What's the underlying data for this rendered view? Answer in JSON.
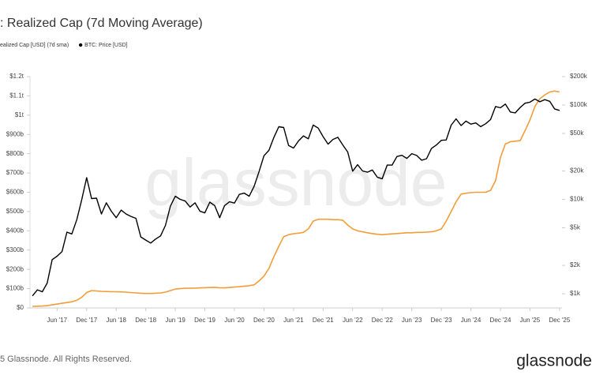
{
  "chart_data": {
    "type": "line",
    "title": ": Realized Cap (7d Moving Average)",
    "x": [
      "2017-01",
      "2017-02",
      "2017-03",
      "2017-04",
      "2017-05",
      "2017-06",
      "2017-07",
      "2017-08",
      "2017-09",
      "2017-10",
      "2017-11",
      "2017-12",
      "2018-01",
      "2018-02",
      "2018-03",
      "2018-04",
      "2018-05",
      "2018-06",
      "2018-07",
      "2018-08",
      "2018-09",
      "2018-10",
      "2018-11",
      "2018-12",
      "2019-01",
      "2019-02",
      "2019-03",
      "2019-04",
      "2019-05",
      "2019-06",
      "2019-07",
      "2019-08",
      "2019-09",
      "2019-10",
      "2019-11",
      "2019-12",
      "2020-01",
      "2020-02",
      "2020-03",
      "2020-04",
      "2020-05",
      "2020-06",
      "2020-07",
      "2020-08",
      "2020-09",
      "2020-10",
      "2020-11",
      "2020-12",
      "2021-01",
      "2021-02",
      "2021-03",
      "2021-04",
      "2021-05",
      "2021-06",
      "2021-07",
      "2021-08",
      "2021-09",
      "2021-10",
      "2021-11",
      "2021-12",
      "2022-01",
      "2022-02",
      "2022-03",
      "2022-04",
      "2022-05",
      "2022-06",
      "2022-07",
      "2022-08",
      "2022-09",
      "2022-10",
      "2022-11",
      "2022-12",
      "2023-01",
      "2023-02",
      "2023-03",
      "2023-04",
      "2023-05",
      "2023-06",
      "2023-07",
      "2023-08",
      "2023-09",
      "2023-10",
      "2023-11",
      "2023-12",
      "2024-01",
      "2024-02",
      "2024-03",
      "2024-04",
      "2024-05",
      "2024-06",
      "2024-07",
      "2024-08",
      "2024-09",
      "2024-10",
      "2024-11",
      "2024-12",
      "2025-01",
      "2025-02",
      "2025-03",
      "2025-04",
      "2025-05",
      "2025-06",
      "2025-07",
      "2025-08",
      "2025-09",
      "2025-10",
      "2025-11",
      "2025-12"
    ],
    "series": [
      {
        "name": "ealized Cap [USD] (7d sma)",
        "color": "#f29d38",
        "axis": "y",
        "values": [
          8,
          9,
          10,
          12,
          16,
          20,
          24,
          28,
          32,
          40,
          55,
          80,
          90,
          88,
          86,
          85,
          84,
          84,
          83,
          82,
          80,
          78,
          76,
          75,
          75,
          76,
          78,
          82,
          90,
          98,
          100,
          102,
          102,
          103,
          104,
          105,
          106,
          107,
          105,
          104,
          106,
          108,
          110,
          113,
          115,
          120,
          140,
          165,
          205,
          265,
          320,
          370,
          380,
          385,
          388,
          392,
          410,
          450,
          460,
          460,
          460,
          458,
          458,
          455,
          430,
          410,
          400,
          395,
          390,
          386,
          382,
          380,
          382,
          384,
          386,
          388,
          390,
          390,
          392,
          392,
          393,
          395,
          400,
          410,
          450,
          500,
          550,
          590,
          595,
          598,
          600,
          600,
          600,
          610,
          660,
          780,
          850,
          862,
          865,
          868,
          920,
          975,
          1045,
          1085,
          1105,
          1120,
          1125,
          1120
        ]
      },
      {
        "name": "BTC: Price [USD]",
        "color": "#000000",
        "axis": "y2",
        "values": [
          950,
          1100,
          1050,
          1300,
          2300,
          2500,
          2800,
          4500,
          4300,
          6100,
          9900,
          17000,
          10200,
          10300,
          7000,
          9200,
          7500,
          6400,
          7700,
          7000,
          6600,
          6300,
          4000,
          3700,
          3450,
          3800,
          4100,
          5300,
          8500,
          10800,
          10000,
          9600,
          8300,
          9200,
          7500,
          7200,
          9350,
          8600,
          6400,
          8600,
          9450,
          9140,
          11300,
          11650,
          10800,
          13800,
          19700,
          29000,
          33100,
          45200,
          58900,
          57700,
          37300,
          35000,
          41500,
          47100,
          43800,
          61300,
          57000,
          46300,
          38500,
          43200,
          45500,
          37700,
          31800,
          19900,
          23300,
          20000,
          19400,
          20500,
          17200,
          16550,
          23100,
          23100,
          28500,
          29300,
          27200,
          30500,
          29200,
          26000,
          27000,
          34600,
          37700,
          42300,
          42600,
          61200,
          71300,
          60600,
          67500,
          62700,
          64600,
          59000,
          63300,
          70200,
          96400,
          93400,
          102400,
          84400,
          82500,
          94200,
          104600,
          107100,
          115700,
          108200,
          114000,
          109500,
          91000,
          87500
        ]
      }
    ],
    "ylim": [
      0,
      1200
    ],
    "yticks": [
      {
        "value": 0,
        "label": "$0"
      },
      {
        "value": 100,
        "label": "$100b"
      },
      {
        "value": 200,
        "label": "$200b"
      },
      {
        "value": 300,
        "label": "$300b"
      },
      {
        "value": 400,
        "label": "$400b"
      },
      {
        "value": 500,
        "label": "$500b"
      },
      {
        "value": 600,
        "label": "$600b"
      },
      {
        "value": 700,
        "label": "$700b"
      },
      {
        "value": 800,
        "label": "$800b"
      },
      {
        "value": 900,
        "label": "$900b"
      },
      {
        "value": 1000,
        "label": "$1t"
      },
      {
        "value": 1100,
        "label": "$1.1t"
      },
      {
        "value": 1200,
        "label": "$1.2t"
      }
    ],
    "y2lim": [
      708,
      200000
    ],
    "y2log": true,
    "y2ticks": [
      {
        "value": 1000,
        "label": "$1k"
      },
      {
        "value": 2000,
        "label": "$2k"
      },
      {
        "value": 5000,
        "label": "$5k"
      },
      {
        "value": 10000,
        "label": "$10k"
      },
      {
        "value": 20000,
        "label": "$20k"
      },
      {
        "value": 50000,
        "label": "$50k"
      },
      {
        "value": 100000,
        "label": "$100k"
      },
      {
        "value": 200000,
        "label": "$200k"
      }
    ],
    "xticks": [
      {
        "value": "2017-06",
        "label": "Jun '17"
      },
      {
        "value": "2017-12",
        "label": "Dec '17"
      },
      {
        "value": "2018-06",
        "label": "Jun '18"
      },
      {
        "value": "2018-12",
        "label": "Dec '18"
      },
      {
        "value": "2019-06",
        "label": "Jun '19"
      },
      {
        "value": "2019-12",
        "label": "Dec '19"
      },
      {
        "value": "2020-06",
        "label": "Jun '20"
      },
      {
        "value": "2020-12",
        "label": "Dec '20"
      },
      {
        "value": "2021-06",
        "label": "Jun '21"
      },
      {
        "value": "2021-12",
        "label": "Dec '21"
      },
      {
        "value": "2022-06",
        "label": "Jun '22"
      },
      {
        "value": "2022-12",
        "label": "Dec '22"
      },
      {
        "value": "2023-06",
        "label": "Jun '23"
      },
      {
        "value": "2023-12",
        "label": "Dec '23"
      },
      {
        "value": "2024-06",
        "label": "Jun '24"
      },
      {
        "value": "2024-12",
        "label": "Dec '24"
      },
      {
        "value": "2025-06",
        "label": "Jun '25"
      },
      {
        "value": "2025-12",
        "label": "Dec '25"
      }
    ]
  },
  "watermark": "glassnode",
  "footer": "5 Glassnode. All Rights Reserved.",
  "logo": "glassnode"
}
